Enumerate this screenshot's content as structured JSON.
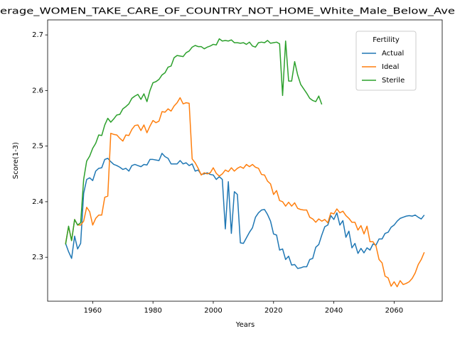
{
  "chart_data": {
    "type": "line",
    "title": "erage_WOMEN_TAKE_CARE_OF_COUNTRY_NOT_HOME_White_Male_Below_Ave",
    "xlabel": "Years",
    "ylabel": "Score(1-3)",
    "legend_title": "Fertility",
    "legend": "upper right",
    "grid": false,
    "xlim": [
      1945.05,
      2075.95
    ],
    "xticks": [
      1960,
      1980,
      2000,
      2020,
      2040,
      2060
    ],
    "ylim": [
      2.221,
      2.727
    ],
    "yticks": [
      2.3,
      2.4,
      2.5,
      2.6,
      2.7
    ],
    "x": [
      1951,
      1952,
      1953,
      1954,
      1955,
      1956,
      1957,
      1958,
      1959,
      1960,
      1961,
      1962,
      1963,
      1964,
      1965,
      1966,
      1967,
      1968,
      1969,
      1970,
      1971,
      1972,
      1973,
      1974,
      1975,
      1976,
      1977,
      1978,
      1979,
      1980,
      1981,
      1982,
      1983,
      1984,
      1985,
      1986,
      1987,
      1988,
      1989,
      1990,
      1991,
      1992,
      1993,
      1994,
      1995,
      1996,
      1997,
      1998,
      1999,
      2000,
      2001,
      2002,
      2003,
      2004,
      2005,
      2006,
      2007,
      2008,
      2009,
      2010,
      2011,
      2012,
      2013,
      2014,
      2015,
      2016,
      2017,
      2018,
      2019,
      2020,
      2021,
      2022,
      2023,
      2024,
      2025,
      2026,
      2027,
      2028,
      2029,
      2030,
      2031,
      2032,
      2033,
      2034,
      2035,
      2036,
      2037,
      2038,
      2039,
      2040,
      2041,
      2042,
      2043,
      2044,
      2045,
      2046,
      2047,
      2048,
      2049,
      2050,
      2051,
      2052,
      2053,
      2054,
      2055,
      2056,
      2057,
      2058,
      2059,
      2060,
      2061,
      2062,
      2063,
      2064,
      2065,
      2066,
      2067,
      2068,
      2069,
      2070
    ],
    "series": [
      {
        "name": "Actual",
        "color": "#1f77b4",
        "values": [
          2.325,
          2.31,
          2.298,
          2.338,
          2.315,
          2.325,
          2.415,
          2.44,
          2.443,
          2.438,
          2.455,
          2.46,
          2.461,
          2.476,
          2.478,
          2.472,
          2.467,
          2.465,
          2.462,
          2.458,
          2.46,
          2.455,
          2.465,
          2.467,
          2.465,
          2.463,
          2.467,
          2.466,
          2.476,
          2.476,
          2.475,
          2.474,
          2.487,
          2.481,
          2.478,
          2.468,
          2.468,
          2.468,
          2.474,
          2.468,
          2.47,
          2.465,
          2.468,
          2.455,
          2.457,
          2.449,
          2.45,
          2.452,
          2.449,
          2.448,
          2.44,
          2.445,
          2.44,
          2.351,
          2.436,
          2.343,
          2.418,
          2.413,
          2.326,
          2.325,
          2.335,
          2.345,
          2.353,
          2.372,
          2.38,
          2.385,
          2.386,
          2.377,
          2.365,
          2.342,
          2.34,
          2.313,
          2.315,
          2.296,
          2.302,
          2.286,
          2.287,
          2.28,
          2.281,
          2.283,
          2.283,
          2.296,
          2.298,
          2.318,
          2.323,
          2.34,
          2.355,
          2.358,
          2.375,
          2.368,
          2.38,
          2.358,
          2.366,
          2.336,
          2.347,
          2.317,
          2.325,
          2.307,
          2.316,
          2.308,
          2.317,
          2.313,
          2.324,
          2.322,
          2.333,
          2.333,
          2.343,
          2.345,
          2.354,
          2.358,
          2.365,
          2.37,
          2.372,
          2.374,
          2.375,
          2.374,
          2.376,
          2.372,
          2.369,
          2.376
        ]
      },
      {
        "name": "Ideal",
        "color": "#ff7f0e",
        "values": [
          2.325,
          2.355,
          2.33,
          2.368,
          2.358,
          2.358,
          2.365,
          2.39,
          2.382,
          2.358,
          2.37,
          2.376,
          2.376,
          2.408,
          2.41,
          2.523,
          2.521,
          2.52,
          2.514,
          2.509,
          2.52,
          2.519,
          2.53,
          2.537,
          2.538,
          2.528,
          2.538,
          2.524,
          2.536,
          2.546,
          2.542,
          2.545,
          2.562,
          2.561,
          2.567,
          2.563,
          2.572,
          2.578,
          2.587,
          2.576,
          2.578,
          2.577,
          2.477,
          2.47,
          2.46,
          2.448,
          2.452,
          2.45,
          2.452,
          2.461,
          2.451,
          2.446,
          2.45,
          2.457,
          2.454,
          2.461,
          2.455,
          2.46,
          2.463,
          2.46,
          2.467,
          2.463,
          2.467,
          2.462,
          2.46,
          2.449,
          2.448,
          2.437,
          2.432,
          2.413,
          2.42,
          2.402,
          2.4,
          2.392,
          2.399,
          2.392,
          2.398,
          2.388,
          2.386,
          2.385,
          2.385,
          2.372,
          2.369,
          2.363,
          2.369,
          2.365,
          2.368,
          2.362,
          2.38,
          2.378,
          2.387,
          2.38,
          2.383,
          2.375,
          2.37,
          2.363,
          2.363,
          2.349,
          2.357,
          2.342,
          2.356,
          2.328,
          2.328,
          2.32,
          2.296,
          2.29,
          2.266,
          2.263,
          2.248,
          2.256,
          2.247,
          2.258,
          2.251,
          2.253,
          2.256,
          2.262,
          2.272,
          2.287,
          2.296,
          2.309
        ]
      },
      {
        "name": "Sterile",
        "color": "#2ca02c",
        "values": [
          2.323,
          2.356,
          2.33,
          2.368,
          2.358,
          2.362,
          2.44,
          2.473,
          2.482,
          2.496,
          2.505,
          2.52,
          2.519,
          2.538,
          2.55,
          2.543,
          2.549,
          2.556,
          2.557,
          2.567,
          2.571,
          2.576,
          2.586,
          2.59,
          2.593,
          2.584,
          2.594,
          2.58,
          2.6,
          2.614,
          2.616,
          2.62,
          2.628,
          2.632,
          2.642,
          2.644,
          2.659,
          2.663,
          2.662,
          2.661,
          2.668,
          2.671,
          2.678,
          2.681,
          2.679,
          2.679,
          2.675,
          2.678,
          2.68,
          2.683,
          2.682,
          2.693,
          2.689,
          2.69,
          2.689,
          2.691,
          2.686,
          2.686,
          2.685,
          2.686,
          2.683,
          2.687,
          2.68,
          2.678,
          2.686,
          2.687,
          2.686,
          2.69,
          2.685,
          2.686,
          2.687,
          2.684,
          2.591,
          2.689,
          2.617,
          2.617,
          2.652,
          2.628,
          2.611,
          2.603,
          2.595,
          2.586,
          2.582,
          2.58,
          2.59,
          2.575,
          null,
          null,
          null,
          null,
          null,
          null,
          null,
          null,
          null,
          null,
          null,
          null,
          null,
          null,
          null,
          null,
          null,
          null,
          null,
          null,
          null,
          null,
          null,
          null,
          null,
          null,
          null,
          null,
          null,
          null,
          null,
          null,
          null,
          null
        ]
      }
    ]
  }
}
